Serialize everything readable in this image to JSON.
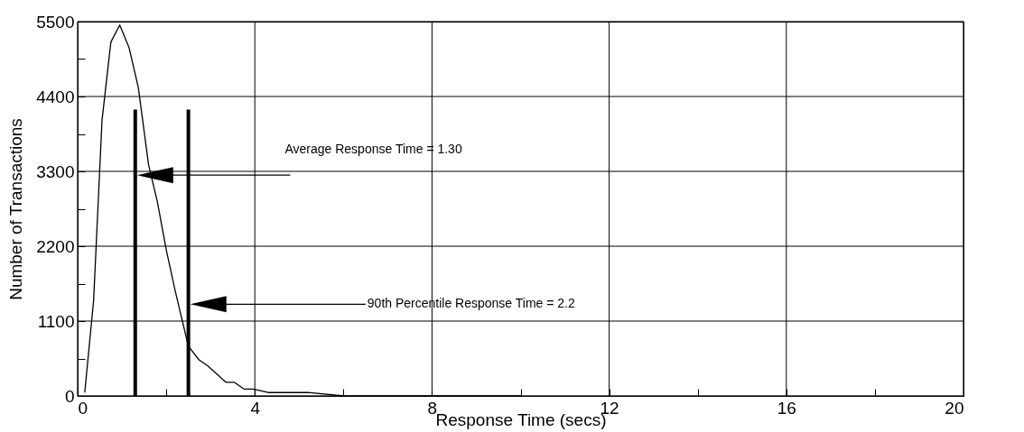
{
  "chart_data": {
    "type": "line",
    "xlabel": "Response Time (secs)",
    "ylabel": "Number of Transactions",
    "x": [
      0.16,
      0.36,
      0.55,
      0.75,
      0.95,
      1.16,
      1.37,
      1.6,
      1.8,
      2.0,
      2.2,
      2.5,
      2.74,
      2.94,
      3.35,
      3.54,
      3.76,
      3.96,
      4.3,
      4.57,
      4.9,
      5.2,
      6.0,
      8.0,
      10.0
    ],
    "series": [
      {
        "color": "#000000",
        "values": [
          50,
          1400,
          4050,
          5200,
          5450,
          5120,
          4530,
          3400,
          2850,
          2150,
          1550,
          730,
          530,
          440,
          200,
          200,
          100,
          100,
          50,
          50,
          50,
          50,
          0,
          0,
          0
        ]
      }
    ],
    "xlim": [
      0,
      20
    ],
    "ylim": [
      0,
      5500
    ],
    "xticks": [
      0,
      {
        "value": 2,
        "label": null
      },
      4,
      {
        "value": 6,
        "label": null
      },
      8,
      {
        "value": 10,
        "label": null
      },
      12,
      {
        "value": 14,
        "label": null
      },
      16,
      {
        "value": 18,
        "label": null
      },
      20
    ],
    "yticks": [
      0,
      {
        "value": 550,
        "label": null
      },
      1100,
      {
        "value": 1650,
        "label": null
      },
      2200,
      {
        "value": 2750,
        "label": null
      },
      3300,
      {
        "value": 3850,
        "label": null
      },
      4400,
      {
        "value": 4950,
        "label": null
      },
      5500
    ],
    "grid": true,
    "marker": "none",
    "line_style": "solid",
    "ref_lines": [
      {
        "axis": "x",
        "value": 1.3
      },
      {
        "axis": "x",
        "value": 2.5
      }
    ],
    "annotations": [
      "Average Response Time = 1.30",
      "90th Percentile Response Time = 2.2"
    ]
  }
}
